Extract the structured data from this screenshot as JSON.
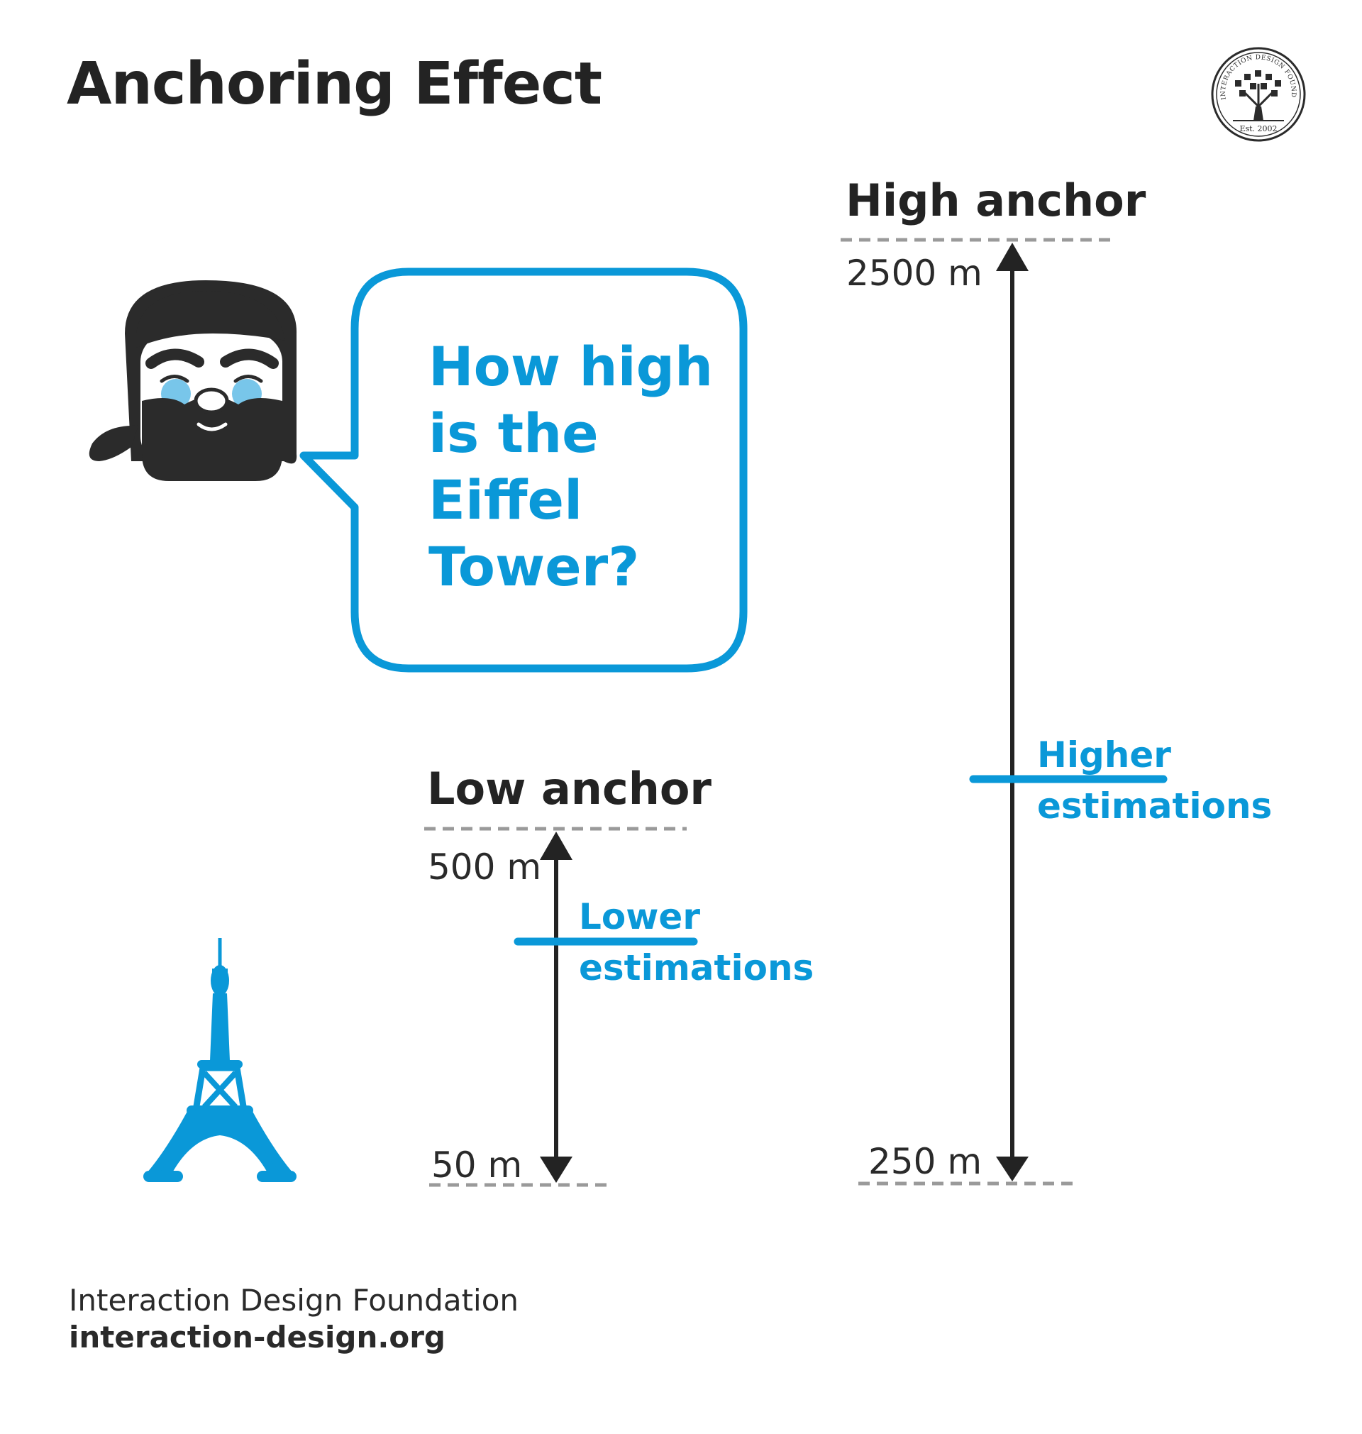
{
  "title": "Anchoring Effect",
  "logo": {
    "top_text": "INTERACTION DESIGN FOUNDATION",
    "est": "Est. 2002"
  },
  "speech": {
    "lines": [
      "How high",
      "is the",
      "Eiffel",
      "Tower?"
    ]
  },
  "high_anchor": {
    "label": "High anchor",
    "top_value": "2500 m",
    "bottom_value": "250 m",
    "estimate_lines": [
      "Higher",
      "estimations"
    ]
  },
  "low_anchor": {
    "label": "Low anchor",
    "top_value": "500 m",
    "bottom_value": "50 m",
    "estimate_lines": [
      "Lower",
      "estimations"
    ]
  },
  "footer": {
    "org": "Interaction Design Foundation",
    "site": "interaction-design.org"
  },
  "colors": {
    "accent": "#0a98d8",
    "dark": "#232323",
    "dash": "#9a9a9a"
  }
}
